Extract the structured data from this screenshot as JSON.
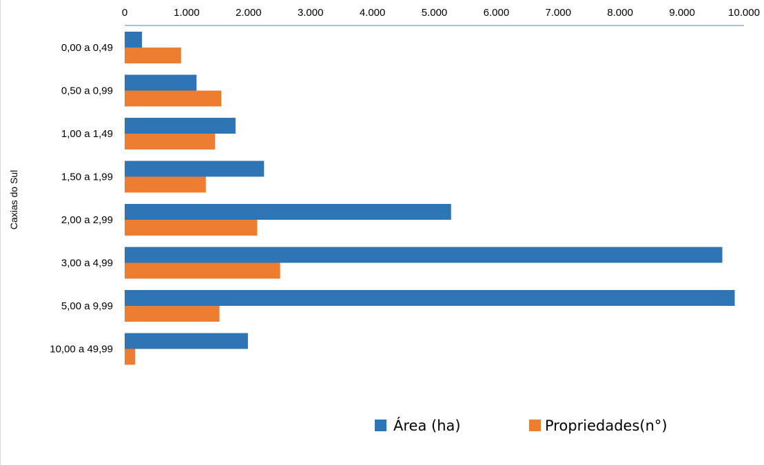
{
  "chart_data": {
    "type": "bar",
    "orientation": "horizontal",
    "title": "",
    "ylabel": "Caxias do Sul",
    "xlabel": "",
    "x_axis_position": "top",
    "xlim": [
      0,
      10000
    ],
    "xticks": [
      "0",
      "1.000",
      "2.000",
      "3.000",
      "4.000",
      "5.000",
      "6.000",
      "7.000",
      "8.000",
      "9.000",
      "10.000"
    ],
    "grid": false,
    "legend_position": "bottom",
    "categories": [
      "0,00 a 0,49",
      "0,50 a 0,99",
      "1,00 a 1,49",
      "1,50 a 1,99",
      "2,00 a 2,99",
      "3,00 a 4,99",
      "5,00 a 9,99",
      "10,00 a 49,99"
    ],
    "series": [
      {
        "name": "Área (ha)",
        "color": "#2e75b6",
        "values": [
          280,
          1160,
          1790,
          2250,
          5270,
          9650,
          9850,
          1990
        ]
      },
      {
        "name": "Propriedades(n°)",
        "color": "#ed7d31",
        "values": [
          910,
          1560,
          1460,
          1310,
          2140,
          2510,
          1530,
          170
        ]
      }
    ]
  }
}
